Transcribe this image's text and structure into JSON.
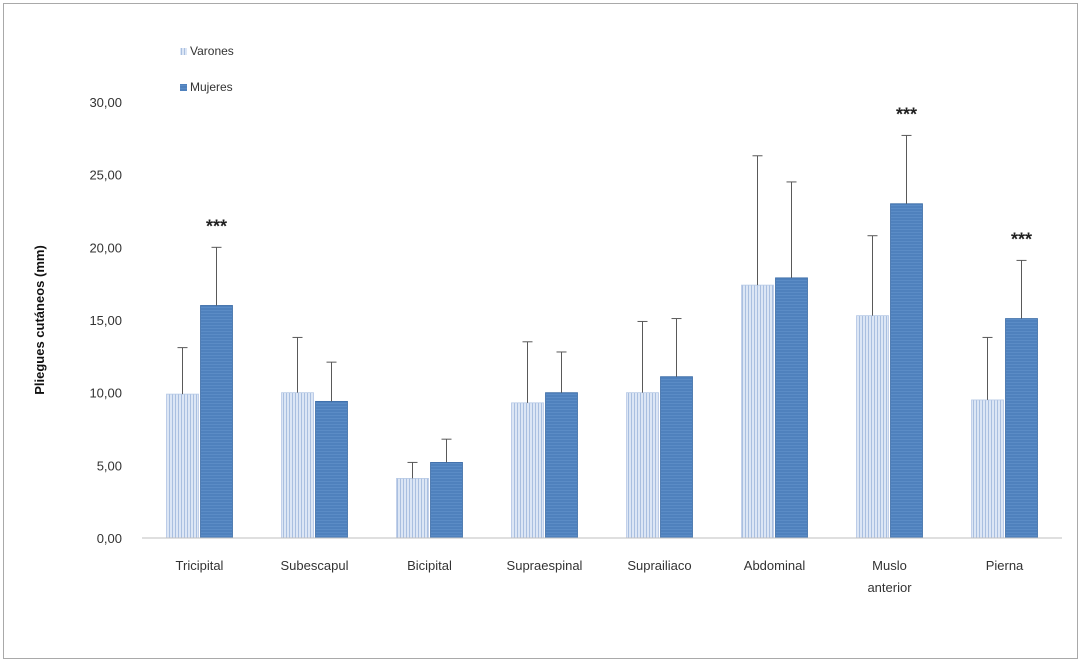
{
  "chart_data": {
    "type": "bar",
    "title": "",
    "xlabel": "",
    "ylabel": "Pliegues cutáneos (mm)",
    "ylim": [
      0,
      30
    ],
    "yticks": [
      "0,00",
      "5,00",
      "10,00",
      "15,00",
      "20,00",
      "25,00",
      "30,00"
    ],
    "categories": [
      "Tricipital",
      "Subescapul",
      "Bicipital",
      "Supraespinal",
      "Suprailiaco",
      "Abdominal",
      "Muslo anterior",
      "Pierna"
    ],
    "category_lines": [
      [
        "Tricipital"
      ],
      [
        "Subescapul"
      ],
      [
        "Bicipital"
      ],
      [
        "Supraespinal"
      ],
      [
        "Suprailiaco"
      ],
      [
        "Abdominal"
      ],
      [
        "Muslo",
        "anterior"
      ],
      [
        "Pierna"
      ]
    ],
    "series": [
      {
        "name": "Varones",
        "color": "#c9d7ee",
        "values": [
          9.9,
          10.0,
          4.1,
          9.3,
          10.0,
          17.4,
          15.3,
          9.5
        ],
        "error": [
          3.2,
          3.8,
          1.1,
          4.2,
          4.9,
          8.9,
          5.5,
          4.3
        ]
      },
      {
        "name": "Mujeres",
        "color": "#4f81bd",
        "values": [
          16.0,
          9.4,
          5.2,
          10.0,
          11.1,
          17.9,
          23.0,
          15.1
        ],
        "error": [
          4.0,
          2.7,
          1.6,
          2.8,
          4.0,
          6.6,
          4.7,
          4.0
        ]
      }
    ],
    "significance": [
      "***",
      "",
      "",
      "",
      "",
      "",
      "***",
      "***"
    ],
    "legend_position": "top-left",
    "grid": false
  }
}
